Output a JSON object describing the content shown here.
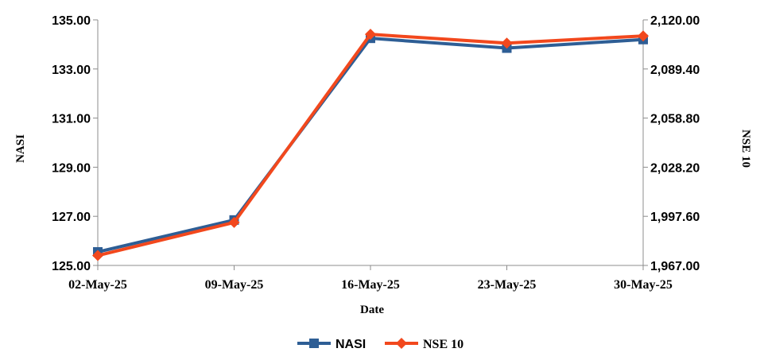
{
  "chart_data": {
    "type": "line",
    "xlabel": "Date",
    "ylabel_left": "NASI",
    "ylabel_right": "NSE 10",
    "categories": [
      "02-May-25",
      "09-May-25",
      "16-May-25",
      "23-May-25",
      "30-May-25"
    ],
    "y_left": {
      "lim": [
        125.0,
        135.0
      ],
      "ticks": [
        "125.00",
        "127.00",
        "129.00",
        "131.00",
        "133.00",
        "135.00"
      ]
    },
    "y_right": {
      "lim": [
        1967.0,
        2120.0
      ],
      "ticks": [
        "1,967.00",
        "1,997.60",
        "2,028.20",
        "2,058.80",
        "2,089.40",
        "2,120.00"
      ]
    },
    "series": [
      {
        "name": "NASI",
        "axis": "left",
        "values": [
          125.55,
          126.85,
          134.25,
          133.85,
          134.2
        ],
        "color": "#2E5E95",
        "marker": "square"
      },
      {
        "name": "NSE 10",
        "axis": "right",
        "values": [
          1973.2,
          1993.8,
          2111.0,
          2105.5,
          2110.0
        ],
        "color": "#F2481D",
        "marker": "diamond"
      }
    ],
    "grid": false,
    "legend": "bottom"
  }
}
